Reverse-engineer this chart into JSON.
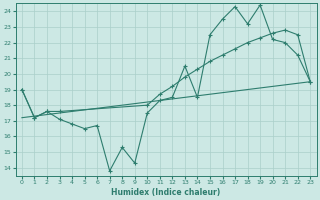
{
  "xlabel": "Humidex (Indice chaleur)",
  "bg_color": "#cce8e4",
  "grid_color": "#aacfca",
  "line_color": "#2e7d6e",
  "xlim": [
    -0.5,
    23.5
  ],
  "ylim": [
    13.5,
    24.5
  ],
  "xticks": [
    0,
    1,
    2,
    3,
    4,
    5,
    6,
    7,
    8,
    9,
    10,
    11,
    12,
    13,
    14,
    15,
    16,
    17,
    18,
    19,
    20,
    21,
    22,
    23
  ],
  "yticks": [
    14,
    15,
    16,
    17,
    18,
    19,
    20,
    21,
    22,
    23,
    24
  ],
  "line1_x": [
    0,
    1,
    2,
    3,
    4,
    5,
    6,
    7,
    8,
    9,
    10,
    11,
    12,
    13,
    14,
    15,
    16,
    17,
    18,
    19,
    20,
    21,
    22,
    23
  ],
  "line1_y": [
    19.0,
    17.2,
    17.6,
    17.1,
    16.8,
    16.5,
    16.7,
    13.8,
    15.3,
    14.3,
    17.5,
    18.3,
    18.5,
    20.5,
    18.5,
    22.5,
    23.5,
    24.3,
    23.2,
    24.4,
    22.2,
    22.0,
    21.2,
    19.5
  ],
  "line2_x": [
    0,
    1,
    2,
    3,
    10,
    11,
    12,
    13,
    14,
    15,
    16,
    17,
    18,
    19,
    20,
    21,
    22,
    23
  ],
  "line2_y": [
    19.0,
    17.2,
    17.6,
    17.6,
    18.0,
    18.7,
    19.2,
    19.8,
    20.3,
    20.8,
    21.2,
    21.6,
    22.0,
    22.3,
    22.6,
    22.8,
    22.5,
    19.5
  ],
  "line3_x": [
    0,
    23
  ],
  "line3_y": [
    17.2,
    19.5
  ]
}
